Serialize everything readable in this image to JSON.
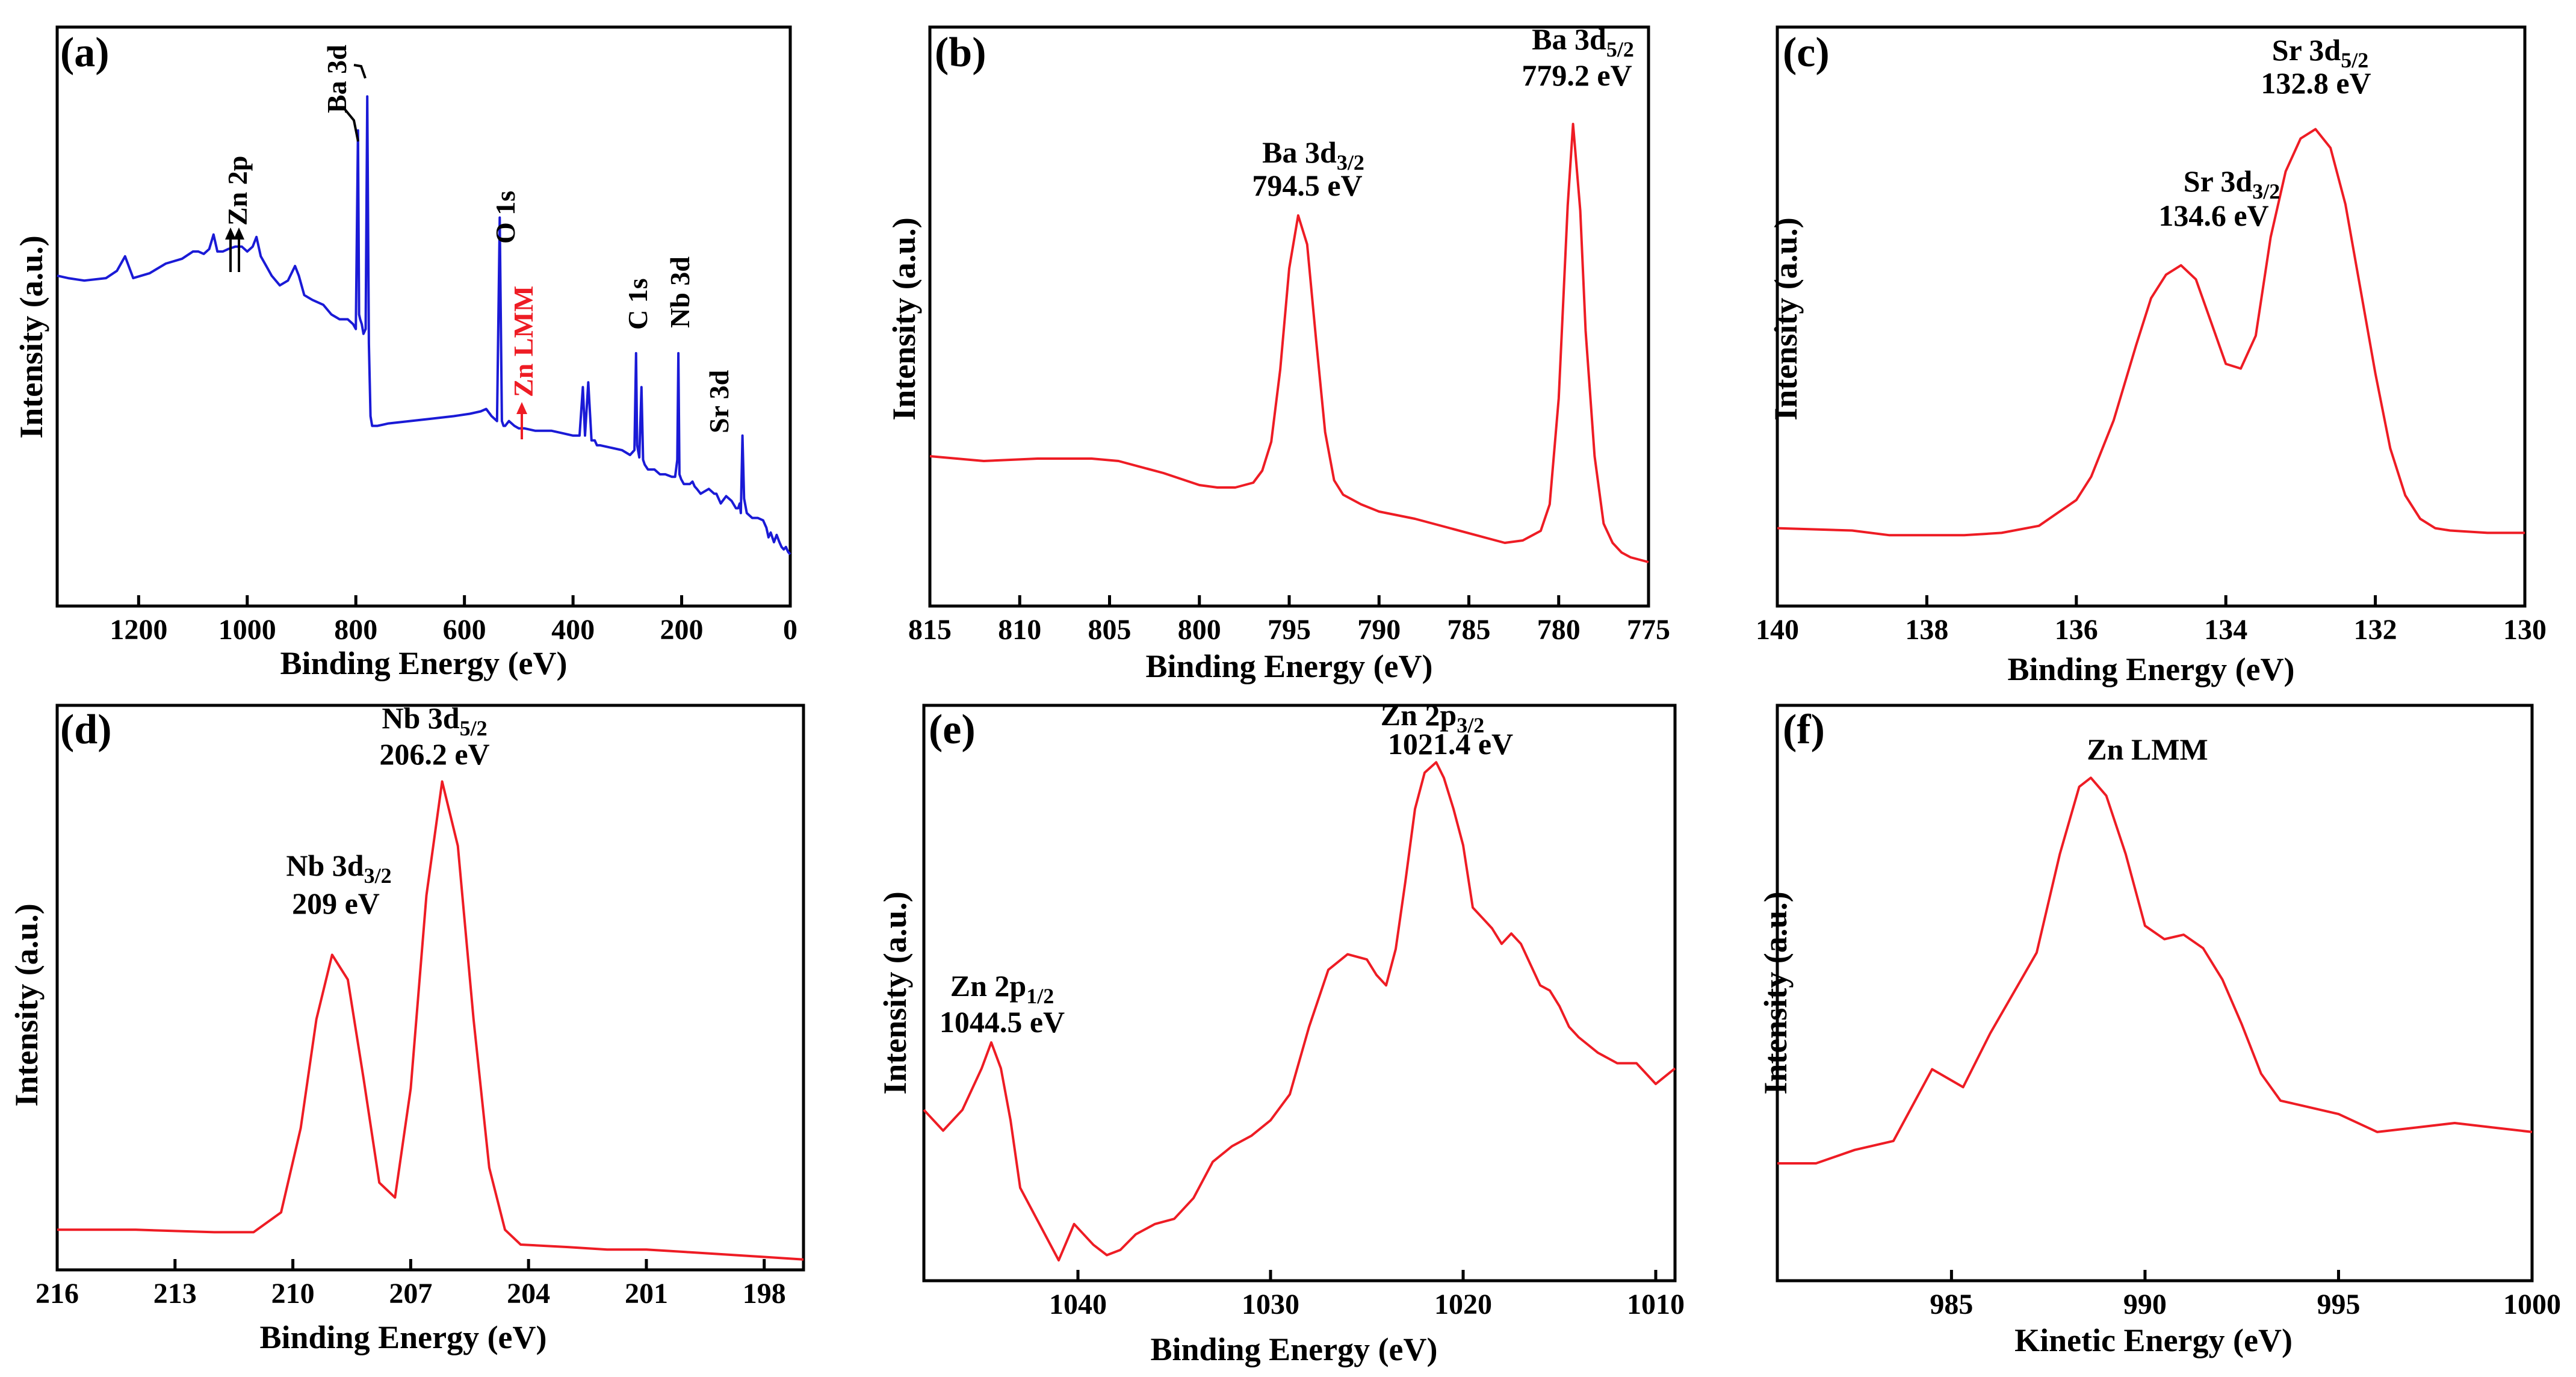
{
  "colors": {
    "survey": "#1a1ad6",
    "detail": "#ee1c24",
    "zn_lmm_label": "#ee1c24",
    "axis": "#000000"
  },
  "chart_data": [
    {
      "panel": "(a)",
      "type": "line",
      "color": "#1a1ad6",
      "xlabel": "Binding Energy (eV)",
      "ylabel": "Intensity (a.u.)",
      "xlim": [
        1350,
        0
      ],
      "ylim": [
        0,
        100
      ],
      "xticks": [
        1200,
        1000,
        800,
        600,
        400,
        200,
        0
      ],
      "xtick_labels": [
        "1200",
        "1000",
        "800",
        "600",
        "400",
        "200",
        "0"
      ],
      "x": [
        1350,
        1330,
        1300,
        1260,
        1240,
        1225,
        1210,
        1180,
        1150,
        1120,
        1100,
        1090,
        1080,
        1070,
        1062,
        1055,
        1045,
        1035,
        1022,
        1010,
        1000,
        990,
        983,
        975,
        965,
        955,
        940,
        925,
        912,
        905,
        895,
        880,
        860,
        845,
        830,
        815,
        805,
        800,
        796,
        794,
        792,
        789,
        786,
        782,
        779,
        776,
        773,
        770,
        760,
        740,
        700,
        660,
        620,
        590,
        570,
        560,
        550,
        540,
        535,
        531,
        528,
        525,
        518,
        508,
        500,
        490,
        470,
        440,
        420,
        400,
        388,
        382,
        378,
        372,
        366,
        360,
        356,
        350,
        330,
        310,
        295,
        287,
        284,
        282,
        278,
        274,
        271,
        268,
        262,
        250,
        240,
        230,
        218,
        212,
        208,
        206,
        204,
        201,
        196,
        185,
        180,
        176,
        172,
        165,
        150,
        140,
        136,
        134,
        132,
        128,
        118,
        108,
        100,
        96,
        93,
        91,
        88,
        85,
        80,
        70,
        60,
        50,
        44,
        40,
        36,
        30,
        25,
        20,
        16,
        12,
        8,
        4,
        0
      ],
      "y": [
        58,
        57.5,
        57,
        57.5,
        59,
        62,
        57.5,
        58.5,
        60.5,
        61.5,
        63,
        63,
        62.5,
        63.5,
        66.5,
        63,
        63,
        63.5,
        64,
        64,
        63,
        64,
        66,
        62,
        60,
        58,
        56,
        57,
        60,
        58,
        54,
        53,
        52,
        50,
        49,
        49,
        48,
        47,
        88,
        50,
        49,
        48,
        46,
        47,
        95,
        44,
        29,
        27,
        27,
        27.5,
        28,
        28.5,
        29,
        29.5,
        30,
        30.5,
        29,
        28,
        70,
        28,
        27,
        27,
        28,
        27,
        26.5,
        26.5,
        26,
        26,
        25.5,
        25,
        25,
        35,
        25,
        36,
        24,
        24,
        23,
        23,
        22.5,
        22,
        21,
        22,
        42,
        23,
        20.5,
        35,
        20,
        19,
        18,
        18,
        17,
        17,
        16.5,
        16.5,
        20,
        42,
        17,
        16,
        15,
        15,
        15.5,
        14.5,
        14,
        13,
        14,
        13,
        13,
        12.5,
        12,
        11,
        12.5,
        11.5,
        10,
        10,
        11,
        9,
        25,
        12,
        9,
        8,
        8,
        7.5,
        6,
        4,
        5,
        3,
        4.5,
        3,
        2,
        1.5,
        2,
        1,
        0.5
      ]
    },
    {
      "panel": "(b)",
      "type": "line",
      "color": "#ee1c24",
      "xlabel": "Binding Energy (eV)",
      "ylabel": "Intensity (a.u.)",
      "xlim": [
        815,
        775
      ],
      "ylim": [
        0,
        100
      ],
      "xticks": [
        815,
        810,
        805,
        800,
        795,
        790,
        785,
        780,
        775
      ],
      "xtick_labels": [
        "815",
        "810",
        "805",
        "800",
        "795",
        "790",
        "785",
        "780",
        "775"
      ],
      "x": [
        815,
        812,
        809,
        806,
        804.5,
        802,
        800,
        799,
        798,
        797,
        796.5,
        796,
        795.5,
        795,
        794.5,
        794,
        793.5,
        793,
        792.5,
        792,
        791,
        790,
        788,
        786,
        784,
        783,
        782,
        781,
        780.5,
        780,
        779.5,
        779.2,
        778.8,
        778.5,
        778,
        777.5,
        777,
        776.5,
        776,
        775
      ],
      "y": [
        24,
        23,
        23.5,
        23.5,
        23,
        20.5,
        18,
        17.5,
        17.5,
        18.5,
        21,
        27,
        42,
        63,
        74,
        68,
        48,
        29,
        19,
        16,
        14,
        12.5,
        11,
        9,
        7,
        6,
        6.5,
        8.5,
        14,
        36,
        76,
        93,
        75,
        50,
        24,
        10,
        6,
        4,
        3,
        2
      ]
    },
    {
      "panel": "(c)",
      "type": "line",
      "color": "#ee1c24",
      "xlabel": "Binding Energy (eV)",
      "ylabel": "Intensity (a.u.)",
      "xlim": [
        140,
        130
      ],
      "ylim": [
        0,
        100
      ],
      "xticks": [
        140,
        138,
        136,
        134,
        132,
        130
      ],
      "xtick_labels": [
        "140",
        "138",
        "136",
        "134",
        "132",
        "130"
      ],
      "x": [
        140,
        139,
        138.5,
        138,
        137.5,
        137,
        136.5,
        136,
        135.8,
        135.5,
        135.2,
        135,
        134.8,
        134.6,
        134.4,
        134.2,
        134,
        133.8,
        133.6,
        133.4,
        133.2,
        133,
        132.8,
        132.6,
        132.4,
        132.2,
        132,
        131.8,
        131.6,
        131.4,
        131.2,
        131,
        130.5,
        130
      ],
      "y": [
        8,
        7.5,
        6.5,
        6.5,
        6.5,
        7,
        8.5,
        14,
        19,
        31,
        47,
        57,
        62,
        64,
        61,
        52,
        43,
        42,
        49,
        70,
        84,
        91,
        93,
        89,
        77,
        59,
        41,
        25,
        15,
        10,
        8,
        7.5,
        7,
        7
      ]
    },
    {
      "panel": "(d)",
      "type": "line",
      "color": "#ee1c24",
      "xlabel": "Binding Energy (eV)",
      "ylabel": "Intensity (a.u.)",
      "xlim": [
        216,
        197
      ],
      "ylim": [
        0,
        100
      ],
      "xticks": [
        216,
        213,
        210,
        207,
        204,
        201,
        198
      ],
      "xtick_labels": [
        "216",
        "213",
        "210",
        "207",
        "204",
        "201",
        "198"
      ],
      "x": [
        216,
        214,
        212,
        211,
        210.3,
        209.8,
        209.4,
        209,
        208.6,
        208.2,
        207.8,
        207.4,
        207,
        206.6,
        206.2,
        205.8,
        205.4,
        205,
        204.6,
        204.2,
        203,
        202,
        201,
        200,
        199,
        198,
        197
      ],
      "y": [
        7.5,
        7.5,
        7,
        7,
        11,
        28,
        50,
        63,
        58,
        38,
        17,
        14,
        36,
        75,
        98,
        85,
        50,
        20,
        7.5,
        4.5,
        4,
        3.5,
        3.5,
        3,
        2.5,
        2,
        1.5
      ]
    },
    {
      "panel": "(e)",
      "type": "line",
      "color": "#ee1c24",
      "xlabel": "Binding Energy (eV)",
      "ylabel": "Intensity (a.u.)",
      "xlim": [
        1048,
        1009
      ],
      "ylim": [
        0,
        100
      ],
      "xticks": [
        1040,
        1030,
        1020,
        1010
      ],
      "xtick_labels": [
        "1040",
        "1030",
        "1020",
        "1010"
      ],
      "x": [
        1048,
        1047,
        1046,
        1045,
        1044.5,
        1044,
        1043.5,
        1043,
        1042,
        1041,
        1040.2,
        1039.2,
        1038.5,
        1037.8,
        1037,
        1036,
        1035,
        1034,
        1033,
        1032,
        1031,
        1030,
        1029,
        1028,
        1027,
        1026,
        1025,
        1024.5,
        1024,
        1023.5,
        1023,
        1022.5,
        1022,
        1021.4,
        1021,
        1020.5,
        1020,
        1019.5,
        1019,
        1018.5,
        1018,
        1017.5,
        1017,
        1016.5,
        1016,
        1015.5,
        1015,
        1014.5,
        1014,
        1013,
        1012,
        1011,
        1010,
        1009
      ],
      "y": [
        32,
        28,
        32,
        40,
        45,
        40,
        30,
        17,
        10,
        3,
        10,
        6,
        4,
        5,
        8,
        10,
        11,
        15,
        22,
        25,
        27,
        30,
        35,
        48,
        59,
        62,
        61,
        58,
        56,
        63,
        76,
        90,
        97,
        99,
        96,
        90,
        83,
        71,
        69,
        67,
        64,
        66,
        64,
        60,
        56,
        55,
        52,
        48,
        46,
        43,
        41,
        41,
        37,
        40
      ]
    },
    {
      "panel": "(f)",
      "type": "line",
      "color": "#ee1c24",
      "xlabel": "Kinetic Energy (eV)",
      "ylabel": "Intensity (a.u.)",
      "xlim": [
        980.5,
        1000
      ],
      "ylim": [
        0,
        100
      ],
      "xticks": [
        985,
        990,
        995,
        1000
      ],
      "xtick_labels": [
        "985",
        "990",
        "995",
        "1000"
      ],
      "x": [
        980.5,
        981.5,
        982.5,
        983.5,
        984.5,
        985.3,
        986,
        986.6,
        987.2,
        987.8,
        988.3,
        988.6,
        989,
        989.5,
        990,
        990.5,
        991,
        991.5,
        992,
        992.5,
        993,
        993.5,
        994,
        995,
        996,
        997,
        998,
        999,
        1000
      ],
      "y": [
        11,
        11,
        14,
        16,
        32,
        28,
        40,
        49,
        58,
        80,
        95,
        97,
        93,
        80,
        64,
        61,
        62,
        59,
        52,
        42,
        31,
        25,
        24,
        22,
        18,
        19,
        20,
        19,
        18
      ]
    }
  ],
  "panels": {
    "a": {
      "label": "(a)",
      "xlabel": "Binding Energy (eV)",
      "ylabel": "Intensity (a.u.)",
      "annotations": {
        "ba3d": "Ba 3d",
        "zn2p": "Zn 2p",
        "o1s": "O 1s",
        "zn_lmm": "Zn LMM",
        "c1s": "C 1s",
        "nb3d": "Nb 3d",
        "sr3d": "Sr 3d"
      }
    },
    "b": {
      "label": "(b)",
      "xlabel": "Binding Energy (eV)",
      "ylabel": "Intensity (a.u.)",
      "peak1": {
        "base": "Ba 3d",
        "sub": "3/2",
        "value": "794.5 eV"
      },
      "peak2": {
        "base": "Ba 3d",
        "sub": "5/2",
        "value": "779.2 eV"
      }
    },
    "c": {
      "label": "(c)",
      "xlabel": "Binding Energy (eV)",
      "ylabel": "Intensity (a.u.)",
      "peak1": {
        "base": "Sr 3d",
        "sub": "3/2",
        "value": "134.6 eV"
      },
      "peak2": {
        "base": "Sr 3d",
        "sub": "5/2",
        "value": "132.8 eV"
      }
    },
    "d": {
      "label": "(d)",
      "xlabel": "Binding Energy (eV)",
      "ylabel": "Intensity (a.u.)",
      "peak1": {
        "base": "Nb 3d",
        "sub": "3/2",
        "value": "209 eV"
      },
      "peak2": {
        "base": "Nb 3d",
        "sub": "5/2",
        "value": "206.2 eV"
      }
    },
    "e": {
      "label": "(e)",
      "xlabel": "Binding Energy (eV)",
      "ylabel": "Intensity (a.u.)",
      "peak1": {
        "base": "Zn 2p",
        "sub": "1/2",
        "value": "1044.5 eV"
      },
      "peak2": {
        "base": "Zn 2p",
        "sub": "3/2",
        "value": "1021.4 eV"
      }
    },
    "f": {
      "label": "(f)",
      "xlabel": "Kinetic Energy (eV)",
      "ylabel": "Intensity (a.u.)",
      "peak1": {
        "base": "Zn LMM"
      }
    }
  }
}
